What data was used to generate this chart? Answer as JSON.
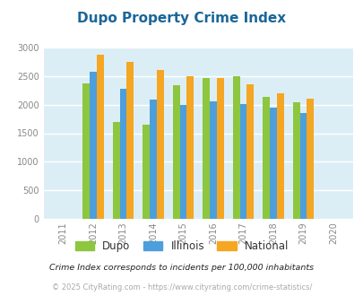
{
  "title": "Dupo Property Crime Index",
  "years": [
    2011,
    2012,
    2013,
    2014,
    2015,
    2016,
    2017,
    2018,
    2019,
    2020
  ],
  "categories": [
    "Dupo",
    "Illinois",
    "National"
  ],
  "data": {
    "Dupo": [
      null,
      2375,
      1700,
      1650,
      2340,
      2460,
      2500,
      2130,
      2040,
      null
    ],
    "Illinois": [
      null,
      2580,
      2280,
      2090,
      2000,
      2050,
      2010,
      1940,
      1850,
      null
    ],
    "National": [
      null,
      2870,
      2750,
      2610,
      2500,
      2460,
      2360,
      2190,
      2100,
      null
    ]
  },
  "colors": {
    "Dupo": "#8dc63f",
    "Illinois": "#4d9fdb",
    "National": "#f5a623"
  },
  "ylim": [
    0,
    3000
  ],
  "yticks": [
    0,
    500,
    1000,
    1500,
    2000,
    2500,
    3000
  ],
  "bg_color": "#dceef5",
  "title_color": "#1a6699",
  "title_fontsize": 11,
  "footnote1": "Crime Index corresponds to incidents per 100,000 inhabitants",
  "footnote2": "© 2025 CityRating.com - https://www.cityrating.com/crime-statistics/",
  "footnote_color1": "#222222",
  "footnote_color2": "#aaaaaa"
}
